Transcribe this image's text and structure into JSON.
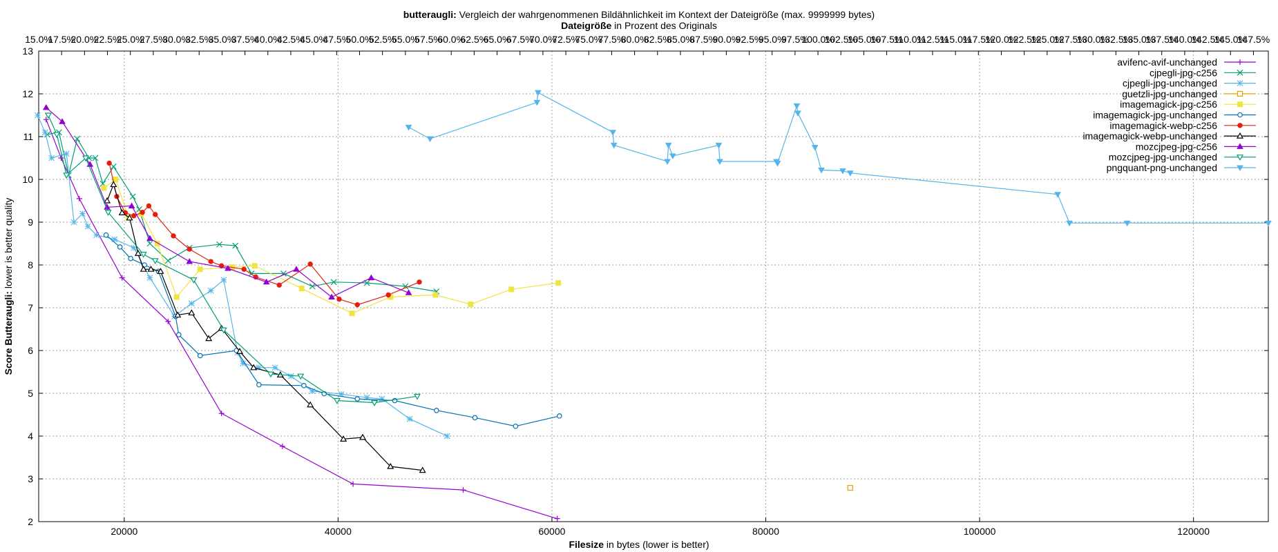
{
  "chart_data": {
    "type": "line",
    "title_bold": "butteraugli:",
    "title_rest": " Vergleich der wahrgenommenen Bildähnlichkeit im Kontext der Dateigröße (max. 9999999 bytes)",
    "x2label_bold": "Dateigröße",
    "x2label_rest": " in Prozent des Originals",
    "xlabel_bold": "Filesize",
    "xlabel_rest": " in bytes (lower is better)",
    "ylabel_bold": "Score Butteraugli:",
    "ylabel_rest": " lower is better quality",
    "xlim": [
      12000,
      127000
    ],
    "ylim": [
      2,
      13
    ],
    "x_ticks": [
      20000,
      40000,
      60000,
      80000,
      100000,
      120000
    ],
    "x_tick_labels": [
      "20000",
      "40000",
      "60000",
      "80000",
      "100000",
      "120000"
    ],
    "y_ticks": [
      2,
      3,
      4,
      5,
      6,
      7,
      8,
      9,
      10,
      11,
      12,
      13
    ],
    "y_tick_labels": [
      "2",
      "3",
      "4",
      "5",
      "6",
      "7",
      "8",
      "9",
      "10",
      "11",
      "12",
      "13"
    ],
    "x2_tick_labels": [
      "15.0%",
      "17.5%",
      "20.0%",
      "22.5%",
      "25.0%",
      "27.5%",
      "30.0%",
      "32.5%",
      "35.0%",
      "37.5%",
      "40.0%",
      "42.5%",
      "45.0%",
      "47.5%",
      "50.0%",
      "52.5%",
      "55.0%",
      "57.5%",
      "60.0%",
      "62.5%",
      "65.0%",
      "67.5%",
      "70.0%",
      "72.5%",
      "75.0%",
      "77.5%",
      "80.0%",
      "82.5%",
      "85.0%",
      "87.5%",
      "90.0%",
      "92.5%",
      "95.0%",
      "97.5%",
      "100.0%",
      "102.5%",
      "105.0%",
      "107.5%",
      "110.0%",
      "112.5%",
      "115.0%",
      "117.5%",
      "120.0%",
      "122.5%",
      "125.0%",
      "127.5%",
      "130.0%",
      "132.5%",
      "135.0%",
      "137.5%",
      "140.0%",
      "142.5%",
      "145.0%",
      "147.5%"
    ],
    "grid": true,
    "legend_position": "top-right",
    "series": [
      {
        "name": "avifenc-avif-unchanged",
        "color": "#9400d3",
        "marker": "plus",
        "points": [
          [
            12700,
            11.4
          ],
          [
            14100,
            10.5
          ],
          [
            15800,
            9.55
          ],
          [
            19800,
            7.7
          ],
          [
            24100,
            6.68
          ],
          [
            29100,
            4.53
          ],
          [
            34800,
            3.76
          ],
          [
            41400,
            2.88
          ],
          [
            51700,
            2.74
          ],
          [
            60500,
            2.07
          ]
        ]
      },
      {
        "name": "cjpegli-jpg-c256",
        "color": "#009e73",
        "marker": "x",
        "points": [
          [
            12800,
            11.05
          ],
          [
            13900,
            11.1
          ],
          [
            14800,
            10.1
          ],
          [
            15600,
            10.95
          ],
          [
            16700,
            10.5
          ],
          [
            17300,
            10.5
          ],
          [
            18000,
            9.9
          ],
          [
            19000,
            10.3
          ],
          [
            20800,
            9.6
          ],
          [
            21400,
            9.3
          ],
          [
            22400,
            8.5
          ],
          [
            24100,
            8.1
          ],
          [
            26100,
            8.4
          ],
          [
            28900,
            8.48
          ],
          [
            30400,
            8.45
          ],
          [
            31900,
            7.8
          ],
          [
            34900,
            7.8
          ],
          [
            37600,
            7.5
          ],
          [
            39600,
            7.6
          ],
          [
            42700,
            7.58
          ],
          [
            46300,
            7.5
          ],
          [
            49200,
            7.38
          ]
        ]
      },
      {
        "name": "cjpegli-jpg-unchanged",
        "color": "#56b4e9",
        "marker": "star",
        "points": [
          [
            11900,
            11.5
          ],
          [
            12600,
            11.1
          ],
          [
            13200,
            10.5
          ],
          [
            14600,
            10.6
          ],
          [
            15300,
            9.0
          ],
          [
            16100,
            9.2
          ],
          [
            16600,
            8.9
          ],
          [
            17400,
            8.7
          ],
          [
            19100,
            8.6
          ],
          [
            20900,
            8.4
          ],
          [
            22400,
            7.7
          ],
          [
            24700,
            6.8
          ],
          [
            26300,
            7.1
          ],
          [
            28100,
            7.4
          ],
          [
            29300,
            7.65
          ],
          [
            30600,
            5.95
          ],
          [
            31100,
            5.7
          ],
          [
            32600,
            5.6
          ],
          [
            34100,
            5.6
          ],
          [
            35600,
            5.4
          ],
          [
            37600,
            5.05
          ],
          [
            40300,
            4.98
          ],
          [
            42700,
            4.9
          ],
          [
            44100,
            4.87
          ],
          [
            46700,
            4.4
          ],
          [
            50200,
            4.0
          ]
        ]
      },
      {
        "name": "guetzli-jpg-unchanged",
        "color": "#e69f00",
        "marker": "square",
        "points": [
          [
            87900,
            2.79
          ]
        ]
      },
      {
        "name": "imagemagick-jpg-c256",
        "color": "#f0e442",
        "marker": "filled-square",
        "points": [
          [
            18100,
            9.8
          ],
          [
            19200,
            10.0
          ],
          [
            20400,
            9.1
          ],
          [
            21600,
            9.2
          ],
          [
            23100,
            8.5
          ],
          [
            24900,
            7.25
          ],
          [
            27100,
            7.9
          ],
          [
            30100,
            7.95
          ],
          [
            32200,
            7.98
          ],
          [
            36600,
            7.45
          ],
          [
            41300,
            6.87
          ],
          [
            44900,
            7.25
          ],
          [
            49100,
            7.3
          ],
          [
            52400,
            7.08
          ],
          [
            56200,
            7.43
          ],
          [
            60600,
            7.58
          ]
        ]
      },
      {
        "name": "imagemagick-jpg-unchanged",
        "color": "#0072b2",
        "marker": "circle",
        "points": [
          [
            18300,
            8.7
          ],
          [
            19600,
            8.42
          ],
          [
            20600,
            8.15
          ],
          [
            21900,
            8.0
          ],
          [
            23200,
            7.85
          ],
          [
            24800,
            6.8
          ],
          [
            25100,
            6.37
          ],
          [
            27100,
            5.88
          ],
          [
            30500,
            6.0
          ],
          [
            32600,
            5.2
          ],
          [
            36800,
            5.18
          ],
          [
            38700,
            4.99
          ],
          [
            41800,
            4.87
          ],
          [
            45300,
            4.83
          ],
          [
            49200,
            4.6
          ],
          [
            52800,
            4.43
          ],
          [
            56600,
            4.23
          ],
          [
            60700,
            4.47
          ]
        ]
      },
      {
        "name": "imagemagick-webp-c256",
        "color": "#e51e10",
        "marker": "filled-circle",
        "points": [
          [
            18600,
            10.38
          ],
          [
            19300,
            9.6
          ],
          [
            20100,
            9.22
          ],
          [
            20900,
            9.15
          ],
          [
            21700,
            9.23
          ],
          [
            22300,
            9.38
          ],
          [
            22900,
            9.18
          ],
          [
            24600,
            8.68
          ],
          [
            26100,
            8.37
          ],
          [
            28100,
            8.08
          ],
          [
            29100,
            7.98
          ],
          [
            31200,
            7.9
          ],
          [
            32300,
            7.72
          ],
          [
            34500,
            7.53
          ],
          [
            37400,
            8.02
          ],
          [
            40100,
            7.2
          ],
          [
            41800,
            7.07
          ],
          [
            44700,
            7.3
          ],
          [
            47600,
            7.6
          ]
        ]
      },
      {
        "name": "imagemagick-webp-unchanged",
        "color": "#000000",
        "marker": "triangle",
        "points": [
          [
            18400,
            9.5
          ],
          [
            19000,
            9.88
          ],
          [
            19800,
            9.22
          ],
          [
            20500,
            9.1
          ],
          [
            21300,
            8.27
          ],
          [
            21800,
            7.9
          ],
          [
            22500,
            7.9
          ],
          [
            23400,
            7.85
          ],
          [
            25000,
            6.83
          ],
          [
            26300,
            6.88
          ],
          [
            27900,
            6.28
          ],
          [
            29100,
            6.52
          ],
          [
            30800,
            5.98
          ],
          [
            32100,
            5.6
          ],
          [
            34600,
            5.43
          ],
          [
            37400,
            4.73
          ],
          [
            40500,
            3.93
          ],
          [
            42300,
            3.97
          ],
          [
            44900,
            3.29
          ],
          [
            47900,
            3.2
          ]
        ]
      },
      {
        "name": "mozcjpeg-jpg-c256",
        "color": "#9400d3",
        "marker": "filled-triangle",
        "points": [
          [
            12700,
            11.68
          ],
          [
            14200,
            11.35
          ],
          [
            16800,
            10.35
          ],
          [
            18400,
            9.35
          ],
          [
            20700,
            9.38
          ],
          [
            22400,
            8.62
          ],
          [
            26100,
            8.08
          ],
          [
            29700,
            7.92
          ],
          [
            33300,
            7.6
          ],
          [
            36100,
            7.9
          ],
          [
            39400,
            7.25
          ],
          [
            43100,
            7.7
          ],
          [
            46600,
            7.35
          ]
        ]
      },
      {
        "name": "mozcjpeg-jpg-unchanged",
        "color": "#009e73",
        "marker": "triangle-down",
        "points": [
          [
            12900,
            11.5
          ],
          [
            13700,
            11.05
          ],
          [
            14600,
            10.1
          ],
          [
            16400,
            10.5
          ],
          [
            18500,
            9.23
          ],
          [
            21800,
            8.25
          ],
          [
            22900,
            8.1
          ],
          [
            26500,
            7.65
          ],
          [
            29300,
            6.48
          ],
          [
            33700,
            5.45
          ],
          [
            36500,
            5.4
          ],
          [
            39900,
            4.83
          ],
          [
            43400,
            4.78
          ],
          [
            47400,
            4.93
          ]
        ]
      },
      {
        "name": "pngquant-png-unchanged",
        "color": "#56b4e9",
        "marker": "filled-triangle-down",
        "points": [
          [
            46600,
            11.22
          ],
          [
            48600,
            10.95
          ],
          [
            58600,
            11.8
          ],
          [
            58700,
            12.03
          ],
          [
            65700,
            11.1
          ],
          [
            65800,
            10.8
          ],
          [
            70800,
            10.42
          ],
          [
            70900,
            10.8
          ],
          [
            71300,
            10.55
          ],
          [
            75600,
            10.8
          ],
          [
            75700,
            10.42
          ],
          [
            81000,
            10.42
          ],
          [
            81100,
            10.38
          ],
          [
            82900,
            11.72
          ],
          [
            83000,
            11.55
          ],
          [
            84600,
            10.75
          ],
          [
            85200,
            10.22
          ],
          [
            87200,
            10.2
          ],
          [
            87900,
            10.15
          ],
          [
            107300,
            9.65
          ],
          [
            108400,
            8.98
          ],
          [
            113800,
            8.98
          ],
          [
            127000,
            8.98
          ]
        ]
      }
    ]
  }
}
